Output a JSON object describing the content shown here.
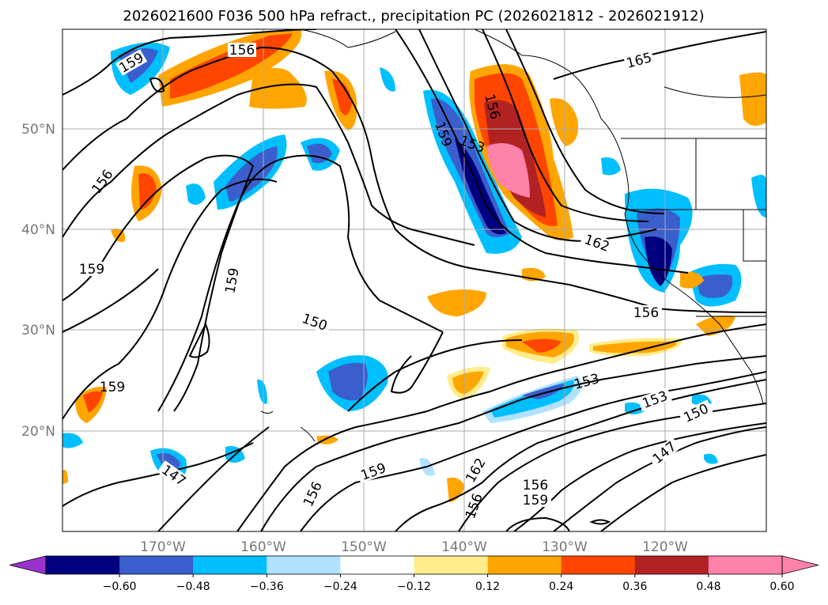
{
  "map": {
    "title": "2026021600 F036 500 hPa refract., precipitation PC (2026021812 - 2026021912)",
    "lon_labels": [
      "170°W",
      "160°W",
      "150°W",
      "140°W",
      "130°W",
      "120°W"
    ],
    "lat_labels": [
      "50°N",
      "40°N",
      "30°N",
      "20°N"
    ],
    "contour_labels": [
      "159",
      "156",
      "165",
      "159",
      "156",
      "153",
      "156",
      "159",
      "162",
      "150",
      "156",
      "159",
      "159",
      "153",
      "153",
      "150",
      "147",
      "147",
      "159",
      "156",
      "156",
      "156",
      "162",
      "159"
    ]
  },
  "colorbar": {
    "ticks": [
      "−0.60",
      "−0.48",
      "−0.36",
      "−0.24",
      "−0.12",
      "0.12",
      "0.24",
      "0.36",
      "0.48",
      "0.60"
    ],
    "colors": [
      "#9a32cd",
      "#000080",
      "#3a5fcd",
      "#00bfff",
      "#b0e2ff",
      "#ffffff",
      "#ffec8b",
      "#ffa500",
      "#ff4500",
      "#b22222",
      "#ff82ab",
      "#ff82ab"
    ]
  }
}
